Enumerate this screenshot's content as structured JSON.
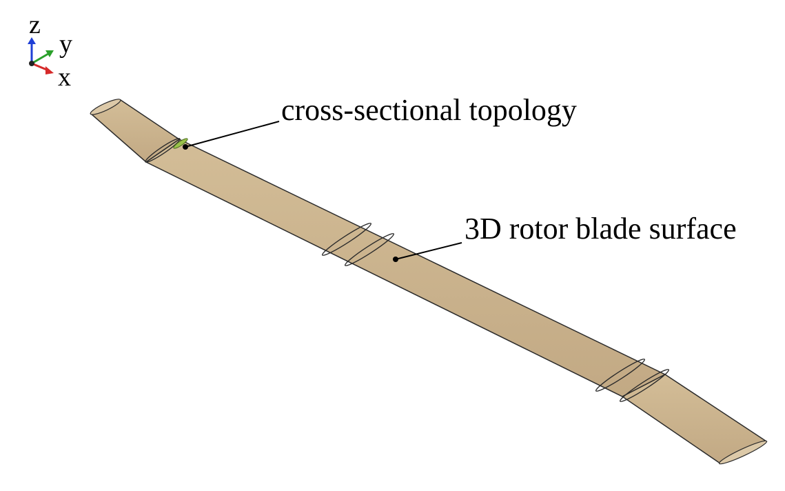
{
  "axes": {
    "z_label": "z",
    "y_label": "y",
    "x_label": "x",
    "z_color": "#1f3fd6",
    "y_color": "#2aa02a",
    "x_color": "#d62a2a"
  },
  "callouts": {
    "topology_label": "cross-sectional topology",
    "surface_label": "3D rotor blade surface"
  },
  "colors": {
    "blade_fill": "#c8b08a",
    "blade_fill_light": "#d8c4a0",
    "blade_edge": "#2b2b2b",
    "section_highlight": "#9ac24a"
  }
}
